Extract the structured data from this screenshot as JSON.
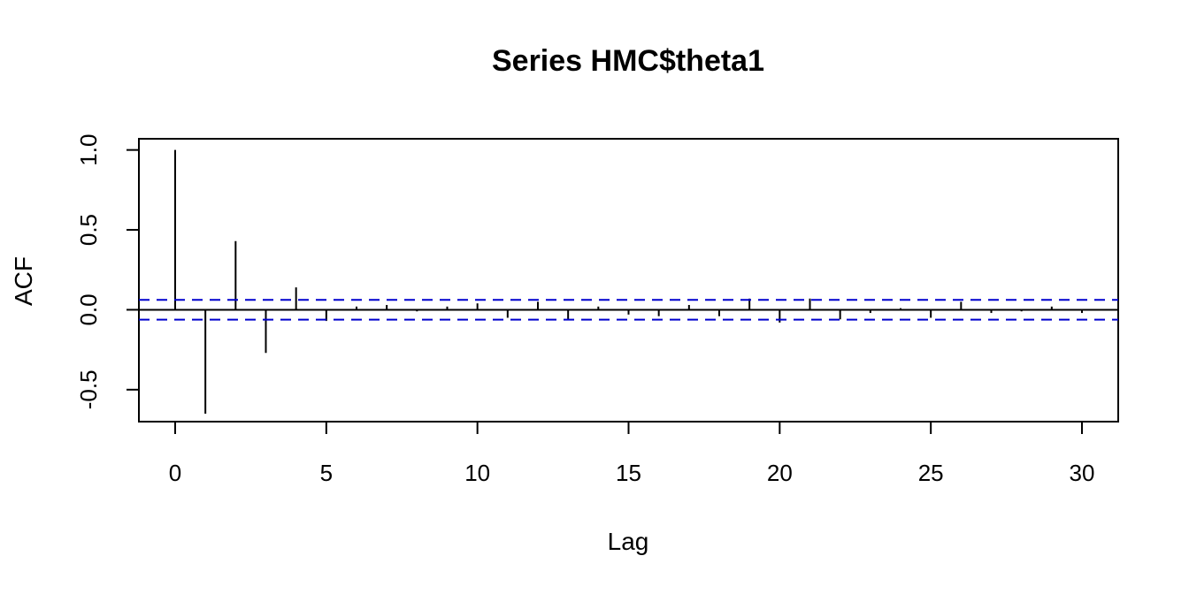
{
  "chart_data": {
    "type": "bar",
    "title": "Series  HMC$theta1",
    "xlabel": "Lag",
    "ylabel": "ACF",
    "xlim": [
      -1.2,
      31.2
    ],
    "ylim": [
      -0.7,
      1.07
    ],
    "x_ticks": [
      0,
      5,
      10,
      15,
      20,
      25,
      30
    ],
    "x_tick_labels": [
      "0",
      "5",
      "10",
      "15",
      "20",
      "25",
      "30"
    ],
    "y_ticks": [
      -0.5,
      0.0,
      0.5,
      1.0
    ],
    "y_tick_labels": [
      "-0.5",
      "0.0",
      "0.5",
      "1.0"
    ],
    "lags": [
      0,
      1,
      2,
      3,
      4,
      5,
      6,
      7,
      8,
      9,
      10,
      11,
      12,
      13,
      14,
      15,
      16,
      17,
      18,
      19,
      20,
      21,
      22,
      23,
      24,
      25,
      26,
      27,
      28,
      29,
      30
    ],
    "values": [
      1.0,
      -0.65,
      0.43,
      -0.27,
      0.14,
      -0.07,
      0.02,
      0.03,
      -0.01,
      0.02,
      0.04,
      -0.05,
      0.05,
      -0.06,
      0.02,
      -0.03,
      -0.04,
      0.03,
      -0.04,
      0.07,
      -0.08,
      0.07,
      -0.06,
      -0.02,
      0.01,
      -0.05,
      0.05,
      -0.02,
      -0.01,
      0.02,
      -0.02
    ],
    "confidence_bound": 0.062,
    "colors": {
      "bars": "#000000",
      "confidence": "#0000CD",
      "zero_line": "#000000",
      "frame": "#000000"
    },
    "grid": false,
    "legend": "none"
  }
}
